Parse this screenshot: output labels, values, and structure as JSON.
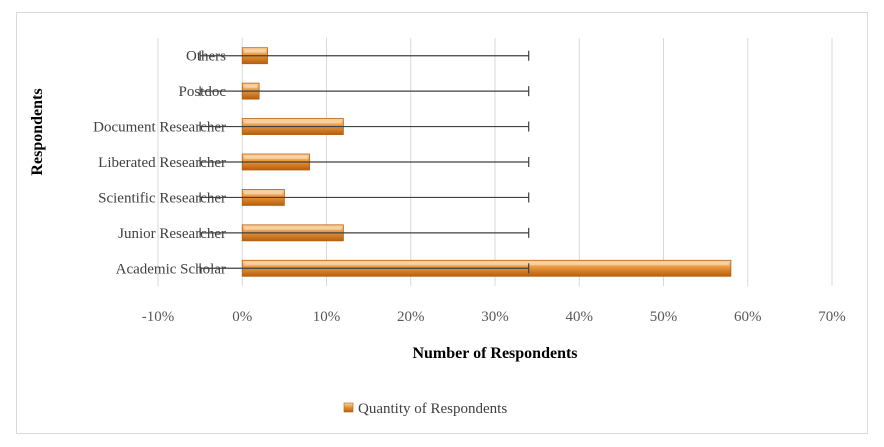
{
  "chart_data": {
    "type": "bar",
    "orientation": "horizontal",
    "categories": [
      "Academic Scholar",
      "Junior Researcher",
      "Scientific Researcher",
      "Liberated Researcher",
      "Document Researcher",
      "Postdoc",
      "Others"
    ],
    "series": [
      {
        "name": "Quantity of Respondents",
        "values": [
          0.58,
          0.12,
          0.05,
          0.08,
          0.12,
          0.02,
          0.03
        ],
        "error_bar_range": [
          -0.05,
          0.34
        ]
      }
    ],
    "xlabel": "Number of Respondents",
    "ylabel": "Respondents",
    "xlim": [
      -0.1,
      0.7
    ],
    "x_ticks": [
      "-10%",
      "0%",
      "10%",
      "20%",
      "30%",
      "40%",
      "50%",
      "60%",
      "70%"
    ],
    "grid": "vertical",
    "legend_position": "bottom",
    "colors": {
      "bar": "#e8953a",
      "bar_light": "#fcd6a4",
      "bar_dark": "#b65f0f",
      "grid": "#d9d9d9",
      "whisker": "#404040"
    }
  }
}
